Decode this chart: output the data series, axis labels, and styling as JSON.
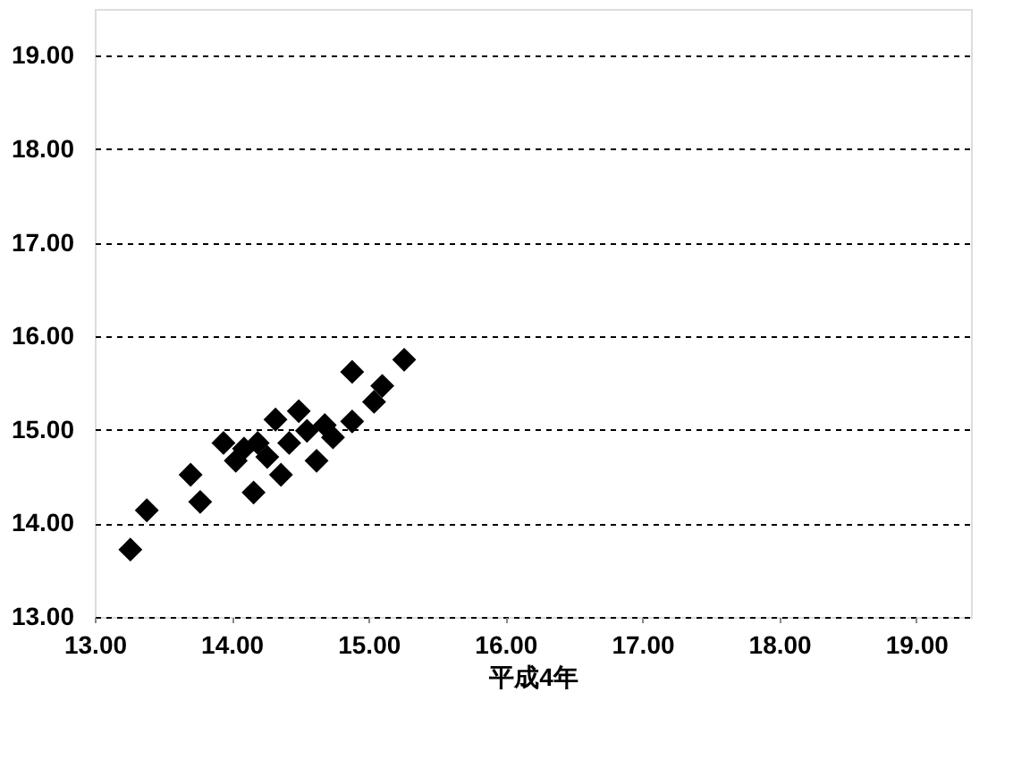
{
  "chart_data": {
    "type": "scatter",
    "xlabel": "平成4年",
    "marker": "diamond",
    "grid": "y",
    "line_style": "dashed",
    "xlim": [
      13,
      19.4
    ],
    "ylim": [
      13,
      19.5
    ],
    "xticks": [
      {
        "value": 13,
        "label": "13.00"
      },
      {
        "value": 14,
        "label": "14.00"
      },
      {
        "value": 15,
        "label": "15.00"
      },
      {
        "value": 16,
        "label": "16.00"
      },
      {
        "value": 17,
        "label": "17.00"
      },
      {
        "value": 18,
        "label": "18.00"
      },
      {
        "value": 19,
        "label": "19.00"
      }
    ],
    "yticks": [
      {
        "value": 13,
        "label": "13.00"
      },
      {
        "value": 14,
        "label": "14.00"
      },
      {
        "value": 15,
        "label": "15.00"
      },
      {
        "value": 16,
        "label": "16.00"
      },
      {
        "value": 17,
        "label": "17.00"
      },
      {
        "value": 18,
        "label": "18.00"
      },
      {
        "value": 19,
        "label": "19.00"
      }
    ],
    "series": [
      {
        "color": "#000000",
        "x": [
          13.26,
          13.38,
          13.7,
          13.77,
          13.94,
          14.03,
          14.16,
          14.09,
          14.32,
          14.36,
          14.49,
          14.55,
          14.62,
          14.68,
          14.88,
          15.04,
          15.1,
          14.88,
          15.26,
          14.19,
          14.42,
          14.26,
          14.74
        ],
        "values": [
          13.72,
          14.14,
          14.52,
          14.23,
          14.86,
          14.67,
          14.33,
          14.8,
          15.11,
          14.52,
          15.2,
          14.99,
          14.67,
          15.05,
          15.09,
          15.3,
          15.47,
          15.62,
          15.75,
          14.86,
          14.86,
          14.71,
          14.92
        ]
      }
    ]
  }
}
